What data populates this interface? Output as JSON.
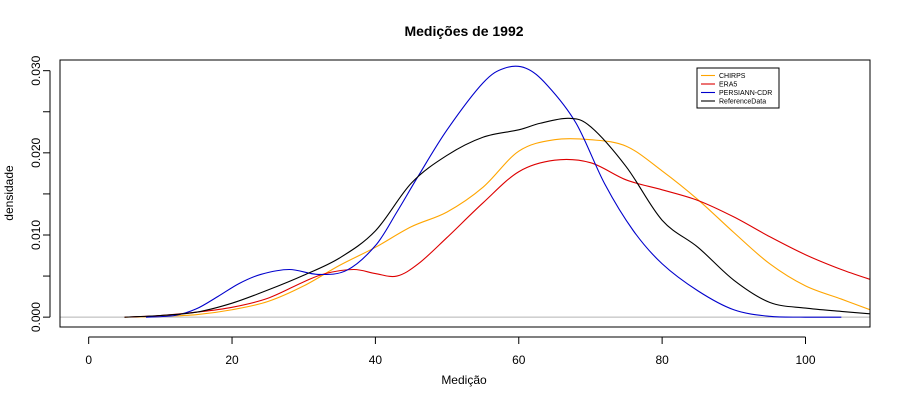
{
  "chart_data": {
    "type": "line",
    "title": "Medições de 1992",
    "xlabel": "Medição",
    "ylabel": "densidade",
    "xlim": [
      -4,
      109
    ],
    "ylim": [
      -0.0012,
      0.0313
    ],
    "x_ticks": [
      0,
      20,
      40,
      60,
      80,
      100
    ],
    "x_tick_labels": [
      "0",
      "20",
      "40",
      "60",
      "80",
      "100"
    ],
    "y_ticks": [
      0.0,
      0.01,
      0.02,
      0.03
    ],
    "y_tick_labels": [
      "0.000",
      "0.010",
      "0.020",
      "0.030"
    ],
    "minor_y_ticks": [
      0.005,
      0.015,
      0.025
    ],
    "reference_line": 0,
    "grid": false,
    "legend_position": "top-right",
    "series": [
      {
        "name": "CHIRPS",
        "color": "#FFA500",
        "x": [
          5,
          10,
          15,
          20,
          25,
          30,
          35,
          40,
          45,
          50,
          55,
          60,
          65,
          70,
          75,
          80,
          85,
          90,
          95,
          100,
          105,
          109
        ],
        "y": [
          0.0,
          0.0001,
          0.0003,
          0.0009,
          0.0019,
          0.0038,
          0.0063,
          0.0085,
          0.011,
          0.0128,
          0.0158,
          0.0202,
          0.0216,
          0.0216,
          0.0208,
          0.0178,
          0.0143,
          0.0103,
          0.0065,
          0.0038,
          0.0022,
          0.0009
        ]
      },
      {
        "name": "ERA5",
        "color": "#DD0000",
        "x": [
          5,
          10,
          15,
          20,
          25,
          30,
          33,
          37,
          40,
          43,
          46,
          50,
          55,
          60,
          65,
          70,
          75,
          80,
          85,
          90,
          95,
          100,
          105,
          109
        ],
        "y": [
          0.0,
          0.0002,
          0.0006,
          0.0012,
          0.0023,
          0.0043,
          0.0053,
          0.0058,
          0.0053,
          0.005,
          0.0065,
          0.0097,
          0.0139,
          0.0177,
          0.0191,
          0.0188,
          0.0167,
          0.0155,
          0.0142,
          0.0122,
          0.0098,
          0.0076,
          0.0058,
          0.0046
        ]
      },
      {
        "name": "PERSIANN-CDR",
        "color": "#0000CC",
        "x": [
          8,
          12,
          15,
          18,
          21,
          24,
          28,
          32,
          36,
          40,
          43,
          46,
          50,
          55,
          58,
          61,
          64,
          68,
          72,
          76,
          80,
          85,
          90,
          95,
          100,
          105
        ],
        "y": [
          0.0,
          0.0002,
          0.001,
          0.0025,
          0.0041,
          0.0052,
          0.0058,
          0.0052,
          0.0057,
          0.0087,
          0.0128,
          0.0172,
          0.0228,
          0.0285,
          0.0303,
          0.0303,
          0.0282,
          0.0236,
          0.0162,
          0.0105,
          0.0065,
          0.0032,
          0.0009,
          0.0001,
          0.0,
          0.0
        ]
      },
      {
        "name": "ReferenceData",
        "color": "#000000",
        "x": [
          5,
          10,
          15,
          20,
          25,
          30,
          35,
          40,
          45,
          50,
          55,
          60,
          63,
          67,
          70,
          75,
          80,
          85,
          90,
          95,
          100,
          105,
          109
        ],
        "y": [
          0.0,
          0.0002,
          0.0006,
          0.0017,
          0.0033,
          0.0051,
          0.0072,
          0.0105,
          0.0163,
          0.0197,
          0.0219,
          0.0228,
          0.0236,
          0.0242,
          0.0232,
          0.0183,
          0.0118,
          0.0085,
          0.0045,
          0.0018,
          0.0011,
          0.0007,
          0.0004
        ]
      }
    ]
  }
}
